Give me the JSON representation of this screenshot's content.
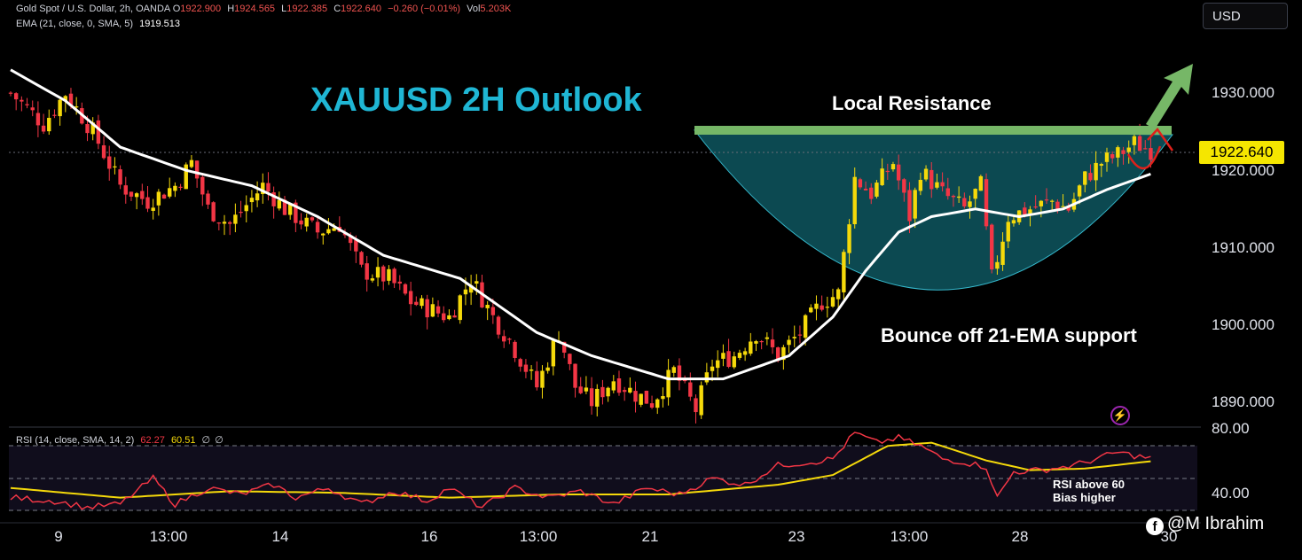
{
  "header": {
    "symbol": "Gold Spot / U.S. Dollar, 2h, OANDA",
    "open_label": "O",
    "open": "1922.900",
    "high_label": "H",
    "high": "1924.565",
    "low_label": "L",
    "low": "1922.385",
    "close_label": "C",
    "close": "1922.640",
    "change": "−0.260 (−0.01%)",
    "vol_label": "Vol",
    "vol": "5.203K",
    "ema_label": "EMA (21, close, 0, SMA, 5)",
    "ema_value": "1919.513"
  },
  "currency": "USD",
  "last_price": "1922.640",
  "annotations": {
    "title": "XAUUSD 2H Outlook",
    "resistance": "Local Resistance",
    "bounce": "Bounce off 21-EMA support",
    "rsi_line1": "RSI above 60",
    "rsi_line2": "Bias higher"
  },
  "credit": {
    "icon": "facebook-icon",
    "handle": "@M Ibrahim"
  },
  "colors": {
    "background": "#000000",
    "up": "#f5d90a",
    "down": "#f23645",
    "ema": "#ffffff",
    "rsi": "#f23645",
    "rsi_ma": "#f5d90a",
    "title": "#1fb6d4",
    "bowl": "#0f5e68",
    "resistance": "#76b767",
    "arrow": "#76b767"
  },
  "chart_data": [
    {
      "type": "candlestick",
      "title": "XAUUSD 2H Outlook",
      "y_ticks": [
        "1890.000",
        "1900.000",
        "1910.000",
        "1920.000",
        "1930.000"
      ],
      "ylim": [
        1887,
        1937
      ],
      "x_ticks": [
        "9",
        "13:00",
        "14",
        "16",
        "13:00",
        "21",
        "23",
        "13:00",
        "28",
        "30"
      ],
      "price_keypoints": [
        {
          "x": 0,
          "y": 1930
        },
        {
          "x": 6,
          "y": 1926
        },
        {
          "x": 10,
          "y": 1930
        },
        {
          "x": 15,
          "y": 1925
        },
        {
          "x": 20,
          "y": 1918
        },
        {
          "x": 25,
          "y": 1916
        },
        {
          "x": 30,
          "y": 1918
        },
        {
          "x": 33,
          "y": 1921
        },
        {
          "x": 36,
          "y": 1915
        },
        {
          "x": 40,
          "y": 1913
        },
        {
          "x": 46,
          "y": 1918
        },
        {
          "x": 50,
          "y": 1915
        },
        {
          "x": 56,
          "y": 1912
        },
        {
          "x": 60,
          "y": 1913
        },
        {
          "x": 64,
          "y": 1907
        },
        {
          "x": 69,
          "y": 1906
        },
        {
          "x": 73,
          "y": 1903
        },
        {
          "x": 80,
          "y": 1901
        },
        {
          "x": 84,
          "y": 1906
        },
        {
          "x": 88,
          "y": 1901
        },
        {
          "x": 91,
          "y": 1898
        },
        {
          "x": 96,
          "y": 1892
        },
        {
          "x": 100,
          "y": 1899
        },
        {
          "x": 103,
          "y": 1892
        },
        {
          "x": 106,
          "y": 1890
        },
        {
          "x": 110,
          "y": 1893
        },
        {
          "x": 114,
          "y": 1891
        },
        {
          "x": 117,
          "y": 1890
        },
        {
          "x": 121,
          "y": 1894
        },
        {
          "x": 125,
          "y": 1889
        },
        {
          "x": 128,
          "y": 1895
        },
        {
          "x": 132,
          "y": 1896
        },
        {
          "x": 136,
          "y": 1899
        },
        {
          "x": 140,
          "y": 1896
        },
        {
          "x": 144,
          "y": 1899
        },
        {
          "x": 148,
          "y": 1903
        },
        {
          "x": 151,
          "y": 1904
        },
        {
          "x": 154,
          "y": 1919
        },
        {
          "x": 157,
          "y": 1917
        },
        {
          "x": 161,
          "y": 1921
        },
        {
          "x": 164,
          "y": 1914
        },
        {
          "x": 166,
          "y": 1920
        },
        {
          "x": 170,
          "y": 1917
        },
        {
          "x": 174,
          "y": 1915
        },
        {
          "x": 177,
          "y": 1918
        },
        {
          "x": 179,
          "y": 1906
        },
        {
          "x": 182,
          "y": 1914
        },
        {
          "x": 186,
          "y": 1915
        },
        {
          "x": 190,
          "y": 1916
        },
        {
          "x": 193,
          "y": 1915
        },
        {
          "x": 196,
          "y": 1919
        },
        {
          "x": 199,
          "y": 1921
        },
        {
          "x": 202,
          "y": 1922
        },
        {
          "x": 205,
          "y": 1923.5
        },
        {
          "x": 208,
          "y": 1922.64
        }
      ],
      "ema21_keypoints": [
        {
          "x": 0,
          "y": 1933
        },
        {
          "x": 10,
          "y": 1929
        },
        {
          "x": 20,
          "y": 1923
        },
        {
          "x": 32,
          "y": 1920
        },
        {
          "x": 44,
          "y": 1918
        },
        {
          "x": 56,
          "y": 1914
        },
        {
          "x": 68,
          "y": 1909
        },
        {
          "x": 82,
          "y": 1906
        },
        {
          "x": 96,
          "y": 1899
        },
        {
          "x": 106,
          "y": 1896
        },
        {
          "x": 120,
          "y": 1893
        },
        {
          "x": 130,
          "y": 1893
        },
        {
          "x": 142,
          "y": 1896
        },
        {
          "x": 150,
          "y": 1901
        },
        {
          "x": 156,
          "y": 1907
        },
        {
          "x": 162,
          "y": 1912
        },
        {
          "x": 168,
          "y": 1914
        },
        {
          "x": 176,
          "y": 1915
        },
        {
          "x": 184,
          "y": 1914
        },
        {
          "x": 192,
          "y": 1915
        },
        {
          "x": 200,
          "y": 1917.5
        },
        {
          "x": 208,
          "y": 1919.513
        }
      ],
      "resistance_level": 1926,
      "last": 1922.64
    },
    {
      "type": "line",
      "title": "RSI (14, close, SMA, 14, 2)",
      "y_ticks": [
        "40.00",
        "80.00"
      ],
      "levels": [
        30,
        70
      ],
      "ylim": [
        26,
        84
      ],
      "series": [
        {
          "name": "RSI",
          "value": 62.27,
          "keypoints": [
            {
              "x": 0,
              "y": 38
            },
            {
              "x": 8,
              "y": 36
            },
            {
              "x": 14,
              "y": 32
            },
            {
              "x": 20,
              "y": 34
            },
            {
              "x": 26,
              "y": 50
            },
            {
              "x": 30,
              "y": 34
            },
            {
              "x": 36,
              "y": 44
            },
            {
              "x": 42,
              "y": 40
            },
            {
              "x": 48,
              "y": 46
            },
            {
              "x": 52,
              "y": 38
            },
            {
              "x": 58,
              "y": 44
            },
            {
              "x": 64,
              "y": 34
            },
            {
              "x": 70,
              "y": 42
            },
            {
              "x": 76,
              "y": 36
            },
            {
              "x": 80,
              "y": 44
            },
            {
              "x": 86,
              "y": 32
            },
            {
              "x": 92,
              "y": 44
            },
            {
              "x": 98,
              "y": 38
            },
            {
              "x": 104,
              "y": 42
            },
            {
              "x": 110,
              "y": 34
            },
            {
              "x": 116,
              "y": 44
            },
            {
              "x": 122,
              "y": 40
            },
            {
              "x": 128,
              "y": 50
            },
            {
              "x": 134,
              "y": 46
            },
            {
              "x": 140,
              "y": 58
            },
            {
              "x": 146,
              "y": 60
            },
            {
              "x": 150,
              "y": 62
            },
            {
              "x": 154,
              "y": 78
            },
            {
              "x": 158,
              "y": 72
            },
            {
              "x": 162,
              "y": 75
            },
            {
              "x": 166,
              "y": 70
            },
            {
              "x": 170,
              "y": 62
            },
            {
              "x": 174,
              "y": 60
            },
            {
              "x": 178,
              "y": 57
            },
            {
              "x": 180,
              "y": 38
            },
            {
              "x": 183,
              "y": 54
            },
            {
              "x": 188,
              "y": 55
            },
            {
              "x": 194,
              "y": 58
            },
            {
              "x": 198,
              "y": 62
            },
            {
              "x": 202,
              "y": 66
            },
            {
              "x": 205,
              "y": 64
            },
            {
              "x": 208,
              "y": 62.27
            }
          ]
        },
        {
          "name": "SMA",
          "value": 60.51,
          "keypoints": [
            {
              "x": 0,
              "y": 44
            },
            {
              "x": 20,
              "y": 38
            },
            {
              "x": 40,
              "y": 42
            },
            {
              "x": 60,
              "y": 41
            },
            {
              "x": 80,
              "y": 38
            },
            {
              "x": 100,
              "y": 40
            },
            {
              "x": 120,
              "y": 40
            },
            {
              "x": 140,
              "y": 46
            },
            {
              "x": 150,
              "y": 52
            },
            {
              "x": 160,
              "y": 70
            },
            {
              "x": 168,
              "y": 72
            },
            {
              "x": 178,
              "y": 61
            },
            {
              "x": 186,
              "y": 55
            },
            {
              "x": 196,
              "y": 56
            },
            {
              "x": 208,
              "y": 60.51
            }
          ]
        }
      ]
    }
  ]
}
